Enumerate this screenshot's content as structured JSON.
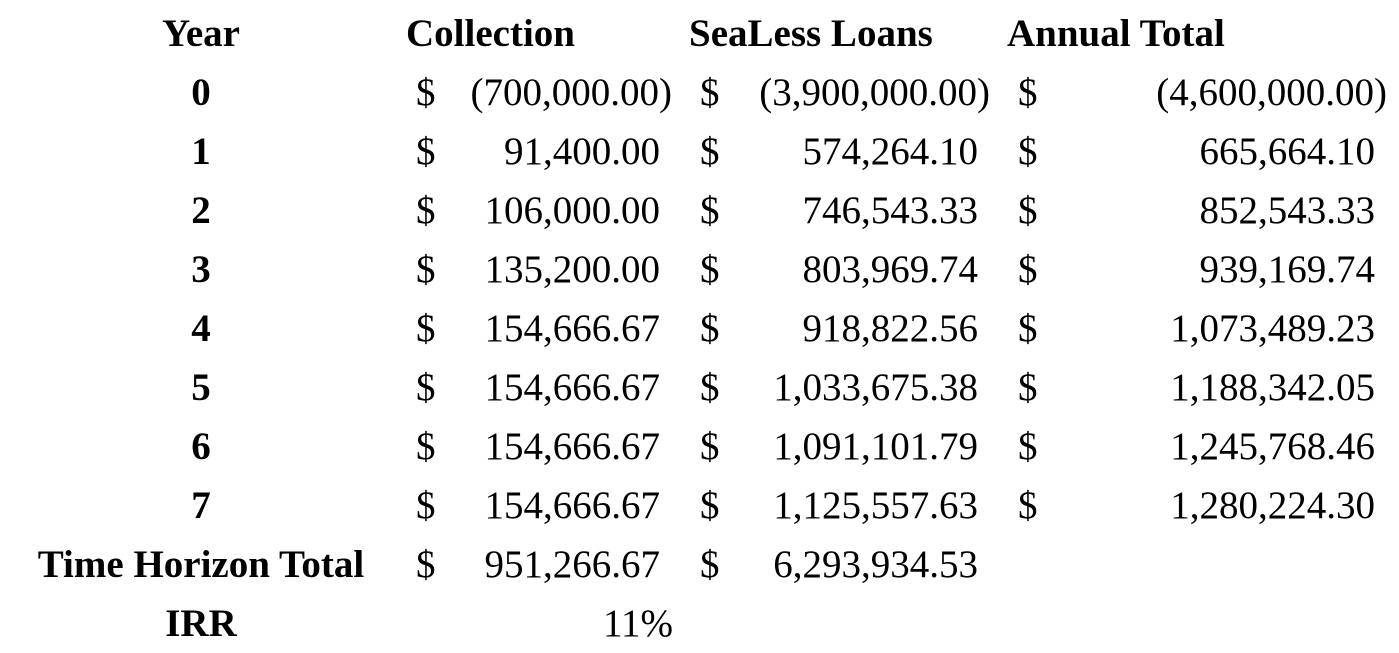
{
  "headers": {
    "year": "Year",
    "collection": "Collection",
    "sealess": "SeaLess Loans",
    "annual": "Annual Total"
  },
  "currency_symbol": "$",
  "rows": [
    {
      "year": "0",
      "collection": "(700,000.00)",
      "sealess": "(3,900,000.00)",
      "annual": "(4,600,000.00)"
    },
    {
      "year": "1",
      "collection": "91,400.00",
      "sealess": "574,264.10",
      "annual": "665,664.10"
    },
    {
      "year": "2",
      "collection": "106,000.00",
      "sealess": "746,543.33",
      "annual": "852,543.33"
    },
    {
      "year": "3",
      "collection": "135,200.00",
      "sealess": "803,969.74",
      "annual": "939,169.74"
    },
    {
      "year": "4",
      "collection": "154,666.67",
      "sealess": "918,822.56",
      "annual": "1,073,489.23"
    },
    {
      "year": "5",
      "collection": "154,666.67",
      "sealess": "1,033,675.38",
      "annual": "1,188,342.05"
    },
    {
      "year": "6",
      "collection": "154,666.67",
      "sealess": "1,091,101.79",
      "annual": "1,245,768.46"
    },
    {
      "year": "7",
      "collection": "154,666.67",
      "sealess": "1,125,557.63",
      "annual": "1,280,224.30"
    }
  ],
  "total": {
    "label": "Time Horizon Total",
    "collection": "951,266.67",
    "sealess": "6,293,934.53"
  },
  "irr": {
    "label": "IRR",
    "value": "11%"
  }
}
